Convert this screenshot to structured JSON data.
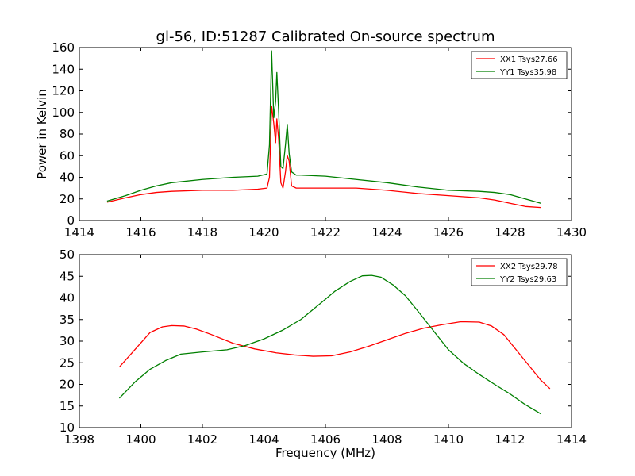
{
  "figure": {
    "title": "gl-56, ID:51287 Calibrated On-source spectrum"
  },
  "chart_data": [
    {
      "type": "line",
      "title": "gl-56, ID:51287 Calibrated On-source spectrum",
      "xlabel": "",
      "ylabel": "Power in Kelvin",
      "xlim": [
        1414,
        1430
      ],
      "ylim": [
        0,
        160
      ],
      "xticks": [
        1414,
        1416,
        1418,
        1420,
        1422,
        1424,
        1426,
        1428,
        1430
      ],
      "yticks": [
        0,
        20,
        40,
        60,
        80,
        100,
        120,
        140,
        160
      ],
      "grid": false,
      "legend_position": "top-right",
      "series": [
        {
          "name": "XX1 Tsys27.66",
          "color": "#ff0000",
          "x": [
            1414.9,
            1415.5,
            1416.0,
            1416.5,
            1417.0,
            1418.0,
            1419.0,
            1419.8,
            1420.1,
            1420.18,
            1420.25,
            1420.32,
            1420.38,
            1420.42,
            1420.48,
            1420.55,
            1420.62,
            1420.7,
            1420.76,
            1420.82,
            1420.9,
            1421.05,
            1421.2,
            1422.0,
            1423.0,
            1424.0,
            1425.0,
            1426.0,
            1427.0,
            1427.5,
            1428.0,
            1428.5,
            1429.0
          ],
          "y": [
            17,
            21,
            24,
            26,
            27,
            28,
            28,
            29,
            30,
            40,
            106,
            90,
            72,
            94,
            75,
            35,
            30,
            45,
            60,
            55,
            32,
            30,
            30,
            30,
            30,
            28,
            25,
            23,
            21,
            19,
            16,
            13,
            12
          ]
        },
        {
          "name": "YY1 Tsys35.98",
          "color": "#007f00",
          "x": [
            1414.9,
            1415.5,
            1416.0,
            1416.5,
            1417.0,
            1418.0,
            1419.0,
            1419.8,
            1420.1,
            1420.18,
            1420.25,
            1420.32,
            1420.38,
            1420.42,
            1420.48,
            1420.55,
            1420.62,
            1420.7,
            1420.76,
            1420.82,
            1420.9,
            1421.05,
            1421.2,
            1422.0,
            1423.0,
            1424.0,
            1425.0,
            1426.0,
            1427.0,
            1427.5,
            1428.0,
            1428.5,
            1429.0
          ],
          "y": [
            18,
            23,
            28,
            32,
            35,
            38,
            40,
            41,
            43,
            70,
            157,
            95,
            110,
            137,
            100,
            50,
            48,
            70,
            89,
            62,
            45,
            42,
            42,
            41,
            38,
            35,
            31,
            28,
            27,
            26,
            24,
            20,
            16
          ]
        }
      ]
    },
    {
      "type": "line",
      "title": "",
      "xlabel": "Frequency (MHz)",
      "ylabel": "",
      "xlim": [
        1398,
        1414
      ],
      "ylim": [
        10,
        50
      ],
      "xticks": [
        1398,
        1400,
        1402,
        1404,
        1406,
        1408,
        1410,
        1412,
        1414
      ],
      "yticks": [
        10,
        15,
        20,
        25,
        30,
        35,
        40,
        45,
        50
      ],
      "grid": false,
      "legend_position": "top-right",
      "series": [
        {
          "name": "XX2 Tsys29.78",
          "color": "#ff0000",
          "x": [
            1399.3,
            1399.8,
            1400.3,
            1400.7,
            1401.0,
            1401.4,
            1401.8,
            1402.3,
            1403.0,
            1403.7,
            1404.4,
            1405.0,
            1405.6,
            1406.2,
            1406.8,
            1407.4,
            1408.0,
            1408.6,
            1409.2,
            1409.8,
            1410.4,
            1411.0,
            1411.4,
            1411.8,
            1412.2,
            1412.6,
            1413.0,
            1413.3
          ],
          "y": [
            24,
            28,
            32,
            33.3,
            33.6,
            33.5,
            32.8,
            31.5,
            29.5,
            28.2,
            27.3,
            26.8,
            26.5,
            26.6,
            27.5,
            28.8,
            30.3,
            31.8,
            33.0,
            33.8,
            34.5,
            34.4,
            33.5,
            31.5,
            28.0,
            24.5,
            21.0,
            19.0
          ]
        },
        {
          "name": "YY2 Tsys29.63",
          "color": "#007f00",
          "x": [
            1399.3,
            1399.8,
            1400.3,
            1400.8,
            1401.3,
            1402.0,
            1402.8,
            1403.4,
            1404.0,
            1404.6,
            1405.2,
            1405.8,
            1406.3,
            1406.8,
            1407.2,
            1407.5,
            1407.8,
            1408.2,
            1408.6,
            1409.0,
            1409.5,
            1410.0,
            1410.5,
            1411.0,
            1411.5,
            1412.0,
            1412.5,
            1413.0
          ],
          "y": [
            16.8,
            20.5,
            23.5,
            25.5,
            27.0,
            27.5,
            28.0,
            29.0,
            30.5,
            32.5,
            35.0,
            38.5,
            41.5,
            43.8,
            45.1,
            45.2,
            44.8,
            43.0,
            40.5,
            37.0,
            32.5,
            28.0,
            24.8,
            22.3,
            20.0,
            17.8,
            15.3,
            13.2
          ]
        }
      ]
    }
  ]
}
